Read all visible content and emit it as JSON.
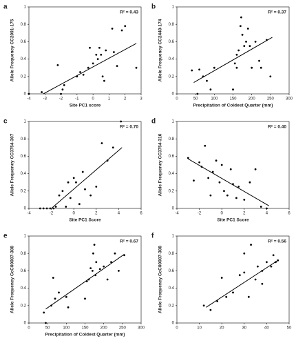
{
  "chart_data": [
    {
      "type": "scatter",
      "letter": "a",
      "annotation": "R² = 0.43",
      "ylabel": "Allele Frequency CC2091-175",
      "xlabel": "Site PC1 score",
      "x": [
        -4,
        -3.2,
        -2.2,
        -2,
        -1.9,
        -1.8,
        -1,
        -0.8,
        -0.6,
        -0.3,
        -0.2,
        0,
        0.2,
        0.3,
        0.4,
        0.5,
        0.6,
        0.7,
        0.8,
        1.2,
        1.3,
        1.5,
        1.8,
        2,
        2.7
      ],
      "y": [
        0,
        0.02,
        0.33,
        0,
        0.05,
        0.1,
        0.2,
        0.25,
        0.22,
        0.3,
        0.53,
        0.35,
        0.45,
        0.4,
        0.53,
        0.45,
        0.2,
        0.15,
        0.5,
        0.75,
        0.48,
        0.32,
        0.73,
        0.78,
        0.3
      ],
      "fit": {
        "x": [
          -3.1,
          2.7
        ],
        "y": [
          0,
          0.58
        ]
      },
      "xlim": [
        -4,
        3
      ],
      "xticks": [
        -4,
        -3,
        -2,
        -1,
        0,
        1,
        2,
        3
      ],
      "ylim": [
        0,
        1
      ],
      "yticks": [
        0,
        0.2,
        0.4,
        0.6,
        0.8,
        1
      ]
    },
    {
      "type": "scatter",
      "letter": "b",
      "annotation": "R² = 0.37",
      "ylabel": "Allele Frequency CC2448-174",
      "xlabel": "Precipitation of Coldest Quarter (mm)",
      "x": [
        40,
        55,
        60,
        70,
        80,
        90,
        100,
        150,
        155,
        160,
        165,
        170,
        172,
        175,
        180,
        185,
        190,
        195,
        200,
        210,
        220,
        225,
        240,
        250,
        160
      ],
      "y": [
        0.27,
        0,
        0.28,
        0.2,
        0.15,
        0.05,
        0.3,
        0.05,
        0.35,
        0.45,
        0.5,
        0.78,
        0.88,
        0.68,
        0.55,
        0.6,
        0.75,
        0.55,
        0.3,
        0.6,
        0.38,
        0.3,
        0.62,
        0.2,
        0.3
      ],
      "fit": {
        "x": [
          45,
          255
        ],
        "y": [
          0.13,
          0.65
        ]
      },
      "xlim": [
        0,
        300
      ],
      "xticks": [
        0,
        50,
        100,
        150,
        200,
        250,
        300
      ],
      "ylim": [
        0,
        1
      ],
      "yticks": [
        0,
        0.2,
        0.4,
        0.6,
        0.8,
        1
      ]
    },
    {
      "type": "scatter",
      "letter": "c",
      "annotation": "R² = 0.70",
      "ylabel": "Allele Frequency CC3754-307",
      "xlabel": "Site PC1 Score",
      "x": [
        -3,
        -2.7,
        -2.4,
        -2.1,
        -1.8,
        -1.6,
        -1.3,
        -1,
        -0.7,
        -0.5,
        -0.3,
        0,
        0.2,
        0.5,
        0.8,
        1,
        1.5,
        2,
        2.5,
        3,
        3.5,
        4.2
      ],
      "y": [
        0,
        0,
        0,
        0,
        0,
        0.02,
        0.15,
        0.2,
        0.02,
        0.3,
        0.12,
        0.35,
        0.3,
        0.05,
        0.42,
        0.22,
        0.15,
        0.25,
        0.75,
        0.55,
        0.7,
        1
      ],
      "fit": {
        "x": [
          -2,
          4.3
        ],
        "y": [
          0,
          0.7
        ]
      },
      "xlim": [
        -4,
        6
      ],
      "xticks": [
        -4,
        -2,
        0,
        2,
        4,
        6
      ],
      "ylim": [
        0,
        1
      ],
      "yticks": [
        0,
        0.2,
        0.4,
        0.6,
        0.8,
        1
      ]
    },
    {
      "type": "scatter",
      "letter": "d",
      "annotation": "R² = 0.40",
      "ylabel": "Allele Frequency CC3754-310",
      "xlabel": "Site PC1 Score",
      "x": [
        -3,
        -2.5,
        -2,
        -1.8,
        -1.5,
        -1.2,
        -1,
        -0.8,
        -0.5,
        -0.2,
        0,
        0.2,
        0.5,
        0.8,
        1,
        1.3,
        1.5,
        2,
        2.5,
        3,
        3.5,
        4
      ],
      "y": [
        0.58,
        0.32,
        0.53,
        0.48,
        0.72,
        0.35,
        0.15,
        0.42,
        0.55,
        0.3,
        0.5,
        0.2,
        0.15,
        0.45,
        0.28,
        0.12,
        0.25,
        0.1,
        0.3,
        0.45,
        0.02,
        0
      ],
      "fit": {
        "x": [
          -3,
          4.2
        ],
        "y": [
          0.57,
          0.03
        ]
      },
      "xlim": [
        -4,
        6
      ],
      "xticks": [
        -4,
        -2,
        0,
        2,
        4,
        6
      ],
      "ylim": [
        0,
        1
      ],
      "yticks": [
        0,
        0.2,
        0.4,
        0.6,
        0.8,
        1
      ]
    },
    {
      "type": "scatter",
      "letter": "e",
      "annotation": "R² = 0.67",
      "ylabel": "Allele Frequency CcC00087-388",
      "xlabel": "Precipitation of Coldest Quarter (mm)",
      "x": [
        40,
        45,
        60,
        65,
        70,
        80,
        100,
        105,
        150,
        155,
        160,
        165,
        170,
        172,
        175,
        178,
        180,
        190,
        200,
        210,
        220,
        230,
        240,
        255
      ],
      "y": [
        0.12,
        0,
        0.2,
        0.52,
        0.28,
        0.35,
        0.3,
        0.18,
        0.28,
        0.48,
        0.5,
        0.63,
        0.6,
        0.8,
        0.9,
        0.55,
        0.7,
        0.62,
        0.65,
        0.5,
        0.7,
        0.8,
        0.6,
        0.78
      ],
      "fit": {
        "x": [
          45,
          255
        ],
        "y": [
          0.16,
          0.79
        ]
      },
      "xlim": [
        0,
        300
      ],
      "xticks": [
        0,
        50,
        100,
        150,
        200,
        250,
        300
      ],
      "ylim": [
        0,
        1
      ],
      "yticks": [
        0,
        0.2,
        0.4,
        0.6,
        0.8,
        1
      ]
    },
    {
      "type": "scatter",
      "letter": "f",
      "annotation": "R² = 0.56",
      "ylabel": "Allele Frequency CcC00087-388",
      "x": [
        12,
        15,
        18,
        20,
        22,
        25,
        28,
        30,
        32,
        33,
        35,
        36,
        38,
        40,
        42,
        43,
        44,
        45,
        38,
        30
      ],
      "y": [
        0.2,
        0.15,
        0.25,
        0.52,
        0.3,
        0.35,
        0.55,
        0.8,
        0.3,
        0.9,
        0.5,
        0.65,
        0.6,
        0.7,
        0.65,
        0.78,
        0.7,
        0.72,
        0.45,
        0.58
      ],
      "fit": {
        "x": [
          13,
          45
        ],
        "y": [
          0.18,
          0.72
        ]
      },
      "xlim": [
        0,
        50
      ],
      "xticks": [
        0,
        10,
        20,
        30,
        40,
        50
      ],
      "ylim": [
        0,
        1
      ],
      "yticks": [
        0,
        0.2,
        0.4,
        0.6,
        0.8,
        1
      ]
    }
  ]
}
